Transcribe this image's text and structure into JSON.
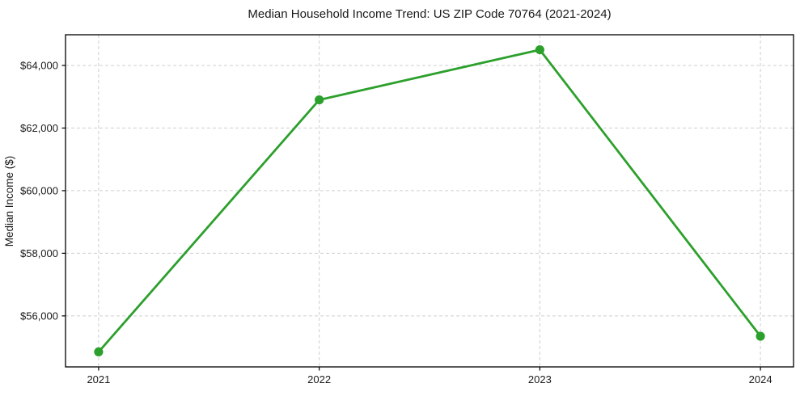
{
  "chart_data": {
    "type": "line",
    "title": "Median Household Income Trend: US ZIP Code 70764 (2021-2024)",
    "xlabel": "",
    "ylabel": "Median Income ($)",
    "x": [
      2021,
      2022,
      2023,
      2024
    ],
    "x_tick_labels": [
      "2021",
      "2022",
      "2023",
      "2024"
    ],
    "series": [
      {
        "name": "Median household income",
        "values": [
          54850,
          62900,
          64500,
          55350
        ]
      }
    ],
    "y_ticks": [
      56000,
      58000,
      60000,
      62000,
      64000
    ],
    "y_tick_labels": [
      "$56,000",
      "$58,000",
      "$60,000",
      "$62,000",
      "$64,000"
    ],
    "xlim": [
      2020.85,
      2024.15
    ],
    "ylim": [
      54370,
      64980
    ],
    "grid": true,
    "grid_style": "dashed",
    "legend": "none",
    "marker": "circle",
    "colors": {
      "line": "#2ca02c",
      "marker": "#2ca02c",
      "grid": "#cfcfcf",
      "spine": "#000000",
      "text": "#1a1a1a",
      "background": "#ffffff"
    }
  }
}
